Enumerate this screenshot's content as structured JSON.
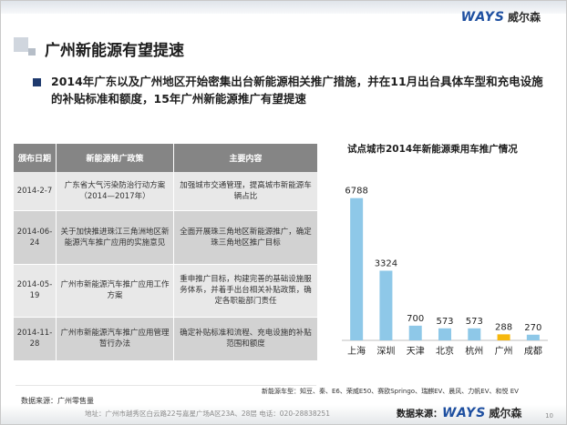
{
  "brand": {
    "logo_text": "WAYS",
    "logo_cn": "威尔森"
  },
  "title": "广州新能源有望提速",
  "bullet": "2014年广东以及广州地区开始密集出台新能源相关推广措施，并在11月出台具体车型和充电设施的补贴标准和额度，15年广州新能源推广有望提速",
  "table": {
    "headers": [
      "颁布日期",
      "新能源推广政策",
      "主要内容"
    ],
    "rows": [
      {
        "date": "2014-2-7",
        "policy": "广东省大气污染防治行动方案（2014—2017年）",
        "content": "加强城市交通管理，提高城市新能源车辆占比"
      },
      {
        "date": "2014-06-24",
        "policy": "关于加快推进珠江三角洲地区新能源汽车推广应用的实施意见",
        "content": "全面开展珠三角地区新能源推广，确定珠三角地区推广目标"
      },
      {
        "date": "2014-05-19",
        "policy": "广州市新能源汽车推广应用工作方案",
        "content": "重申推广目标，构建完善的基础设施服务体系，并着手出台相关补贴政策，确定各职能部门责任"
      },
      {
        "date": "2014-11-28",
        "policy": "广州市新能源汽车推广应用管理暂行办法",
        "content": "确定补贴标准和流程、充电设施的补贴范围和额度"
      }
    ]
  },
  "chart_data": {
    "type": "bar",
    "title": "试点城市2014年新能源乘用车推广情况",
    "categories": [
      "上海",
      "深圳",
      "天津",
      "北京",
      "杭州",
      "广州",
      "成都"
    ],
    "values": [
      6788,
      3324,
      700,
      573,
      573,
      288,
      270
    ],
    "colors": {
      "default": "#8ec8e8",
      "highlight": "#f6b80e"
    },
    "highlight_category": "广州",
    "ylim": [
      0,
      7600
    ],
    "grid": false
  },
  "notes": {
    "models": "新能源车型：知豆、秦、E6、荣威E50、赛欧Springo、瑞麒EV、晨风、力帆EV、和悦 EV",
    "data_source_left": "数据来源：广州零售量"
  },
  "footer": {
    "address": "地址：广州市越秀区白云路22号嘉星广场A区23A、28层    电话：020-28838251",
    "source_label": "数据来源：",
    "page_number": "10"
  }
}
